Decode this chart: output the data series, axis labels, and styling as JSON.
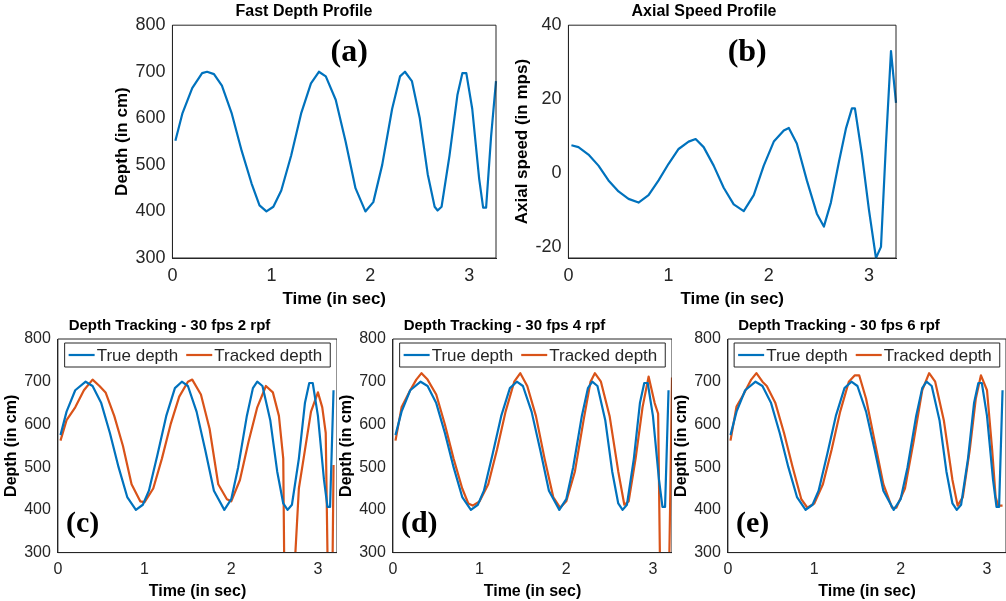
{
  "chart_data": [
    {
      "type": "line",
      "title": "Fast Depth Profile",
      "xlabel": "Time (in sec)",
      "ylabel": "Depth (in cm)",
      "annotations": [
        "(a)"
      ],
      "xlim": [
        0,
        3.27
      ],
      "xticks": [
        0,
        1,
        2,
        3
      ],
      "ylim": [
        300,
        800
      ],
      "yticks": [
        300,
        400,
        500,
        600,
        700,
        800
      ],
      "grid": false,
      "legend": false,
      "series": [
        {
          "color": "#0072bd",
          "x": [
            0.03,
            0.1,
            0.2,
            0.3,
            0.35,
            0.42,
            0.5,
            0.6,
            0.7,
            0.8,
            0.88,
            0.95,
            1.02,
            1.1,
            1.2,
            1.3,
            1.4,
            1.48,
            1.55,
            1.65,
            1.75,
            1.85,
            1.95,
            2.03,
            2.12,
            2.22,
            2.3,
            2.35,
            2.42,
            2.5,
            2.58,
            2.65,
            2.68,
            2.72,
            2.8,
            2.88,
            2.93,
            2.97,
            3.03,
            3.1,
            3.14,
            3.17,
            3.22,
            3.27
          ],
          "values": [
            552,
            610,
            665,
            697,
            700,
            695,
            670,
            610,
            530,
            460,
            413,
            400,
            410,
            445,
            520,
            610,
            675,
            700,
            690,
            640,
            550,
            450,
            400,
            420,
            500,
            620,
            690,
            700,
            680,
            600,
            480,
            410,
            402,
            410,
            520,
            650,
            697,
            697,
            620,
            470,
            408,
            408,
            560,
            680
          ]
        }
      ]
    },
    {
      "type": "line",
      "title": "Axial Speed Profile",
      "xlabel": "Time (in sec)",
      "ylabel": "Axial speed (in mps)",
      "annotations": [
        "(b)"
      ],
      "xlim": [
        0,
        3.27
      ],
      "xticks": [
        0,
        1,
        2,
        3
      ],
      "ylim": [
        -23,
        40
      ],
      "yticks": [
        -20,
        0,
        20,
        40
      ],
      "grid": false,
      "legend": false,
      "series": [
        {
          "color": "#0072bd",
          "x": [
            0.03,
            0.1,
            0.2,
            0.3,
            0.4,
            0.5,
            0.6,
            0.7,
            0.8,
            0.9,
            1.0,
            1.1,
            1.2,
            1.27,
            1.35,
            1.45,
            1.55,
            1.65,
            1.75,
            1.85,
            1.95,
            2.05,
            2.15,
            2.2,
            2.28,
            2.38,
            2.48,
            2.55,
            2.62,
            2.7,
            2.77,
            2.83,
            2.86,
            2.93,
            3.0,
            3.07,
            3.12,
            3.17,
            3.22,
            3.27
          ],
          "values": [
            7.5,
            7,
            5,
            2,
            -2,
            -5,
            -7,
            -8,
            -6,
            -2,
            2.5,
            6.5,
            8.5,
            9.2,
            7,
            2,
            -4,
            -8.5,
            -10.3,
            -6,
            2,
            8.5,
            11.5,
            12.2,
            8,
            -2,
            -11,
            -14.5,
            -8,
            3,
            12,
            17.5,
            17.5,
            5,
            -10,
            -23,
            -20,
            8,
            33,
            19
          ]
        }
      ]
    },
    {
      "type": "line",
      "title": "Depth Tracking - 30 fps 2 rpf",
      "xlabel": "Time (in sec)",
      "ylabel": "Depth (in cm)",
      "annotations": [
        "(c)"
      ],
      "xlim": [
        0,
        3.22
      ],
      "xticks": [
        0,
        1,
        2,
        3
      ],
      "ylim": [
        300,
        800
      ],
      "yticks": [
        300,
        400,
        500,
        600,
        700,
        800
      ],
      "grid": false,
      "legend": "top",
      "series": [
        {
          "name": "True depth",
          "color": "#0072bd",
          "x": [
            0.03,
            0.1,
            0.2,
            0.32,
            0.4,
            0.5,
            0.6,
            0.7,
            0.8,
            0.9,
            0.98,
            1.05,
            1.15,
            1.25,
            1.35,
            1.43,
            1.5,
            1.6,
            1.7,
            1.8,
            1.92,
            2.0,
            2.08,
            2.18,
            2.25,
            2.3,
            2.36,
            2.45,
            2.53,
            2.6,
            2.65,
            2.7,
            2.78,
            2.85,
            2.9,
            2.94,
            3.0,
            3.07,
            3.11,
            3.14,
            3.18
          ],
          "values": [
            575,
            630,
            680,
            700,
            690,
            650,
            580,
            500,
            430,
            400,
            412,
            445,
            530,
            620,
            685,
            700,
            690,
            630,
            540,
            445,
            400,
            425,
            500,
            620,
            685,
            700,
            690,
            610,
            490,
            415,
            400,
            412,
            520,
            650,
            697,
            697,
            620,
            470,
            407,
            407,
            680
          ]
        },
        {
          "name": "Tracked depth",
          "color": "#d95319",
          "x": [
            0.03,
            0.1,
            0.2,
            0.3,
            0.4,
            0.48,
            0.55,
            0.65,
            0.75,
            0.85,
            0.95,
            1.0,
            1.1,
            1.2,
            1.3,
            1.4,
            1.5,
            1.55,
            1.65,
            1.75,
            1.85,
            1.95,
            2.0,
            2.1,
            2.2,
            2.3,
            2.4,
            2.48,
            2.55,
            2.6,
            2.61,
            2.68,
            2.74,
            2.78,
            2.85,
            2.92,
            3.0,
            3.05,
            3.09,
            3.11,
            3.14,
            3.17,
            3.18
          ],
          "values": [
            562,
            610,
            640,
            680,
            705,
            690,
            675,
            620,
            550,
            460,
            420,
            418,
            450,
            520,
            600,
            665,
            700,
            705,
            670,
            590,
            460,
            425,
            420,
            470,
            560,
            640,
            690,
            675,
            620,
            520,
            300,
            null,
            300,
            450,
            540,
            630,
            675,
            640,
            580,
            300,
            null,
            300,
            505
          ]
        }
      ]
    },
    {
      "type": "line",
      "title": "Depth Tracking - 30 fps 4 rpf",
      "xlabel": "Time (in sec)",
      "ylabel": "Depth (in cm)",
      "annotations": [
        "(d)"
      ],
      "xlim": [
        0,
        3.22
      ],
      "xticks": [
        0,
        1,
        2,
        3
      ],
      "ylim": [
        300,
        800
      ],
      "yticks": [
        300,
        400,
        500,
        600,
        700,
        800
      ],
      "grid": false,
      "legend": "top",
      "series": [
        {
          "name": "True depth",
          "color": "#0072bd",
          "x": [
            0.03,
            0.1,
            0.2,
            0.32,
            0.4,
            0.5,
            0.6,
            0.7,
            0.8,
            0.9,
            0.98,
            1.05,
            1.15,
            1.25,
            1.35,
            1.43,
            1.5,
            1.6,
            1.7,
            1.8,
            1.92,
            2.0,
            2.08,
            2.18,
            2.25,
            2.3,
            2.36,
            2.45,
            2.53,
            2.6,
            2.65,
            2.7,
            2.78,
            2.85,
            2.9,
            2.94,
            3.0,
            3.07,
            3.11,
            3.14,
            3.18
          ],
          "values": [
            575,
            630,
            680,
            700,
            690,
            650,
            580,
            500,
            430,
            400,
            412,
            445,
            530,
            620,
            685,
            700,
            690,
            630,
            540,
            445,
            400,
            425,
            500,
            620,
            685,
            700,
            690,
            610,
            490,
            415,
            400,
            412,
            520,
            650,
            697,
            697,
            620,
            470,
            407,
            407,
            680
          ]
        },
        {
          "name": "Tracked depth",
          "color": "#d95319",
          "x": [
            0.03,
            0.1,
            0.2,
            0.27,
            0.33,
            0.4,
            0.5,
            0.6,
            0.7,
            0.8,
            0.87,
            0.92,
            1.0,
            1.1,
            1.2,
            1.3,
            1.4,
            1.47,
            1.55,
            1.65,
            1.75,
            1.85,
            1.93,
            2.0,
            2.1,
            2.2,
            2.28,
            2.33,
            2.4,
            2.5,
            2.6,
            2.67,
            2.72,
            2.8,
            2.88,
            2.95,
            3.02,
            3.06,
            3.08,
            3.12,
            3.19,
            3.22
          ],
          "values": [
            562,
            640,
            680,
            705,
            720,
            705,
            670,
            600,
            520,
            450,
            415,
            410,
            420,
            460,
            540,
            630,
            700,
            720,
            690,
            620,
            520,
            430,
            405,
            420,
            490,
            610,
            700,
            720,
            700,
            620,
            490,
            412,
            420,
            520,
            640,
            712,
            650,
            625,
            300,
            null,
            300,
            710
          ]
        }
      ]
    },
    {
      "type": "line",
      "title": "Depth Tracking - 30 fps 6 rpf",
      "xlabel": "Time (in sec)",
      "ylabel": "Depth (in cm)",
      "annotations": [
        "(e)"
      ],
      "xlim": [
        0,
        3.22
      ],
      "xticks": [
        0,
        1,
        2,
        3
      ],
      "ylim": [
        300,
        800
      ],
      "yticks": [
        300,
        400,
        500,
        600,
        700,
        800
      ],
      "grid": false,
      "legend": "top",
      "series": [
        {
          "name": "True depth",
          "color": "#0072bd",
          "x": [
            0.03,
            0.1,
            0.2,
            0.32,
            0.4,
            0.5,
            0.6,
            0.7,
            0.8,
            0.9,
            0.98,
            1.05,
            1.15,
            1.25,
            1.35,
            1.43,
            1.5,
            1.6,
            1.7,
            1.8,
            1.92,
            2.0,
            2.08,
            2.18,
            2.25,
            2.3,
            2.36,
            2.45,
            2.53,
            2.6,
            2.65,
            2.7,
            2.78,
            2.85,
            2.9,
            2.94,
            3.0,
            3.07,
            3.11,
            3.14,
            3.18
          ],
          "values": [
            575,
            630,
            680,
            700,
            690,
            650,
            580,
            500,
            430,
            400,
            412,
            445,
            530,
            620,
            685,
            700,
            690,
            630,
            540,
            445,
            400,
            425,
            500,
            620,
            685,
            700,
            690,
            610,
            490,
            415,
            400,
            412,
            520,
            650,
            697,
            697,
            620,
            470,
            407,
            407,
            680
          ]
        },
        {
          "name": "Tracked depth",
          "color": "#d95319",
          "x": [
            0.03,
            0.1,
            0.18,
            0.27,
            0.33,
            0.4,
            0.45,
            0.55,
            0.65,
            0.75,
            0.85,
            0.92,
            1.0,
            1.1,
            1.2,
            1.3,
            1.4,
            1.47,
            1.52,
            1.6,
            1.7,
            1.8,
            1.9,
            1.95,
            2.05,
            2.15,
            2.25,
            2.33,
            2.4,
            2.5,
            2.6,
            2.66,
            2.72,
            2.8,
            2.87,
            2.93,
            3.0,
            3.06,
            3.1,
            3.13,
            3.18
          ],
          "values": [
            562,
            642,
            670,
            705,
            720,
            700,
            690,
            650,
            580,
            500,
            425,
            405,
            415,
            460,
            540,
            630,
            700,
            715,
            715,
            660,
            560,
            460,
            405,
            405,
            450,
            560,
            680,
            720,
            700,
            610,
            470,
            410,
            430,
            540,
            660,
            715,
            680,
            540,
            430,
            410,
            410
          ]
        }
      ]
    }
  ]
}
